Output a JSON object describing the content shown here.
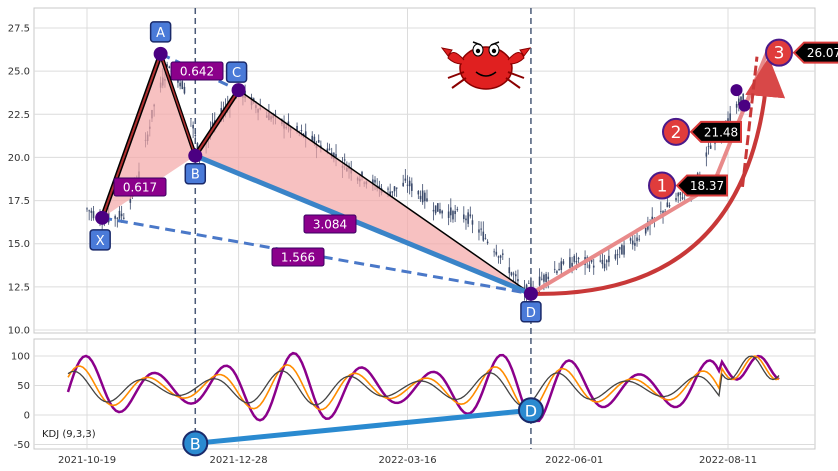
{
  "chart_data": [
    {
      "type": "candlestick",
      "panel": "price",
      "x_dates": [
        "2021-10-19",
        "2021-12-28",
        "2022-03-16",
        "2022-06-01",
        "2022-08-11"
      ],
      "yticks": [
        "10.0",
        "12.5",
        "15.0",
        "17.5",
        "20.0",
        "22.5",
        "25.0",
        "27.5"
      ],
      "ylim": [
        10,
        28
      ],
      "grid": true,
      "candles_approx": [
        [
          "2021-10-19",
          17.0
        ],
        [
          "2021-10-27",
          16.4
        ],
        [
          "2021-11-05",
          16.7
        ],
        [
          "2021-11-12",
          19.0
        ],
        [
          "2021-11-19",
          23.0
        ],
        [
          "2021-11-26",
          25.5
        ],
        [
          "2021-12-03",
          24.0
        ],
        [
          "2021-12-10",
          20.0
        ],
        [
          "2021-12-17",
          22.0
        ],
        [
          "2021-12-28",
          23.9
        ],
        [
          "2022-01-10",
          22.5
        ],
        [
          "2022-01-24",
          21.5
        ],
        [
          "2022-02-07",
          20.5
        ],
        [
          "2022-02-21",
          19.0
        ],
        [
          "2022-03-07",
          18.0
        ],
        [
          "2022-03-16",
          18.5
        ],
        [
          "2022-03-30",
          17.0
        ],
        [
          "2022-04-13",
          16.5
        ],
        [
          "2022-04-27",
          14.5
        ],
        [
          "2022-05-09",
          12.2
        ],
        [
          "2022-05-23",
          13.5
        ],
        [
          "2022-06-01",
          14.0
        ],
        [
          "2022-06-15",
          13.8
        ],
        [
          "2022-06-29",
          15.2
        ],
        [
          "2022-07-13",
          17.0
        ],
        [
          "2022-07-27",
          18.5
        ],
        [
          "2022-08-04",
          21.0
        ],
        [
          "2022-08-11",
          22.0
        ],
        [
          "2022-08-18",
          23.5
        ]
      ],
      "pattern_points": [
        {
          "label": "X",
          "date": "2021-10-26",
          "value": 16.5
        },
        {
          "label": "A",
          "date": "2021-11-22",
          "value": 26.0
        },
        {
          "label": "B",
          "date": "2021-12-08",
          "value": 20.1
        },
        {
          "label": "C",
          "date": "2021-12-28",
          "value": 23.9
        },
        {
          "label": "D",
          "date": "2022-05-12",
          "value": 12.1
        }
      ],
      "ratios": [
        {
          "label": "0.617",
          "between": "X-A-B"
        },
        {
          "label": "0.642",
          "between": "A-B-C"
        },
        {
          "label": "3.084",
          "between": "B-C-D"
        },
        {
          "label": "1.566",
          "between": "X-D"
        }
      ],
      "projection_path": [
        {
          "date": "2022-05-12",
          "value": 12.1
        },
        {
          "date": "2022-08-04",
          "value": 18.37
        },
        {
          "date": "2022-08-14",
          "value": 21.48
        },
        {
          "date": "2022-08-29",
          "value": 26.07
        }
      ],
      "targets": [
        {
          "num": "1",
          "value": "18.37"
        },
        {
          "num": "2",
          "value": "21.48"
        },
        {
          "num": "3",
          "value": "26.07"
        }
      ],
      "mascot": "crab"
    },
    {
      "type": "line",
      "panel": "indicator",
      "label": "KDJ (9,3,3)",
      "yticks": [
        "-50",
        "0",
        "50",
        "100"
      ],
      "ylim": [
        -55,
        130
      ],
      "grid": true,
      "series_colors": [
        "#8b008b",
        "#ff8c00",
        "#444444"
      ],
      "divergence": [
        {
          "label": "B",
          "date": "2021-12-08",
          "value": -48
        },
        {
          "label": "D",
          "date": "2022-05-12",
          "value": 8
        }
      ]
    }
  ],
  "colors": {
    "candle": "#3b4a6b",
    "pattern_fill": "#f4a6a6",
    "blue_leg": "#3a84c8",
    "dashed": "#4a78c8",
    "point": "#4b0082",
    "ratio_box": "#8b008b",
    "target_circle": "#e03c3c",
    "projection": "#e88a8a"
  }
}
